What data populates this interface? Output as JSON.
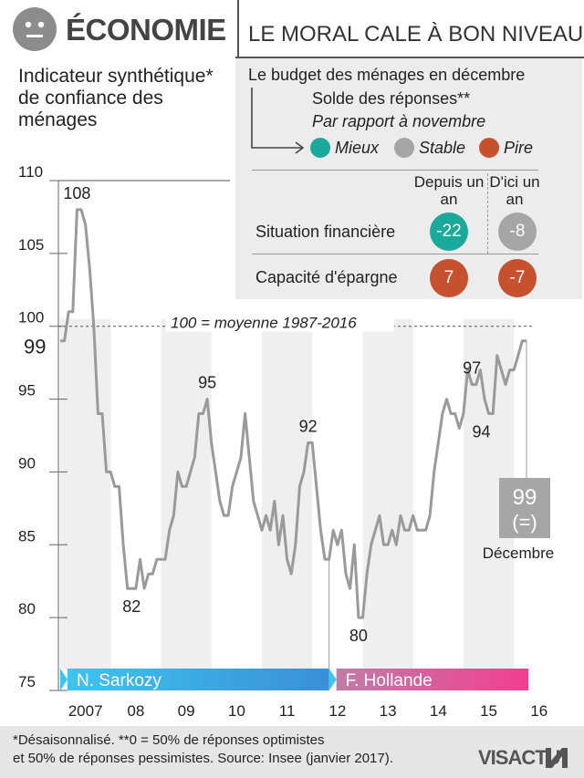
{
  "header": {
    "title": "ÉCONOMIE",
    "subtitle": "LE MORAL CALE À BON NIVEAU",
    "icon": "neutral-face-icon"
  },
  "indicator_title": "Indicateur synthétique* de confiance des ménages",
  "budget_panel": {
    "title": "Le budget des ménages en décembre",
    "subtitle": "Solde des réponses**",
    "subtitle2": "Par rapport à novembre",
    "legend": [
      {
        "label": "Mieux",
        "color": "#1aa99a"
      },
      {
        "label": "Stable",
        "color": "#a6a6a6"
      },
      {
        "label": "Pire",
        "color": "#c5512f"
      }
    ],
    "columns": [
      "Depuis un an",
      "D'ici un an"
    ],
    "rows": [
      {
        "label": "Situation financière",
        "values": [
          "-22",
          "-8"
        ],
        "colors": [
          "#1aa99a",
          "#a6a6a6"
        ]
      },
      {
        "label": "Capacité d'épargne",
        "values": [
          "7",
          "-7"
        ],
        "colors": [
          "#c5512f",
          "#c5512f"
        ]
      }
    ]
  },
  "chart_data": {
    "type": "line",
    "title": "Indicateur synthétique* de confiance des ménages",
    "ylim": [
      75,
      110
    ],
    "y_ticks": [
      "75",
      "80",
      "85",
      "90",
      "95",
      "100",
      "105",
      "110"
    ],
    "x_ticks": [
      "2007",
      "08",
      "09",
      "10",
      "11",
      "12",
      "13",
      "14",
      "15",
      "16"
    ],
    "reference_line": {
      "value": 100,
      "label": "100 = moyenne 1987-2016"
    },
    "series": [
      {
        "values": [
          99,
          99,
          101,
          101,
          108,
          108,
          107,
          104,
          100,
          94,
          94,
          90,
          90,
          89,
          89,
          85,
          82,
          82,
          82,
          84,
          82,
          83,
          83,
          84,
          84,
          84,
          86,
          87,
          90,
          89,
          89,
          90,
          91,
          94,
          94,
          95,
          92,
          90,
          88,
          87,
          87,
          89,
          90,
          91,
          94,
          91,
          88,
          87,
          86,
          87,
          86,
          88,
          85,
          87,
          84,
          83,
          85,
          89,
          90,
          92,
          92,
          89,
          86,
          84,
          84,
          86,
          85,
          86,
          83,
          82,
          85,
          80,
          80,
          83,
          85,
          86,
          87,
          85,
          85,
          86,
          85,
          87,
          86,
          86,
          87,
          86,
          86,
          86,
          87,
          90,
          92,
          94,
          95,
          94,
          94,
          93,
          94,
          97,
          96,
          96,
          97,
          95,
          94,
          94,
          98,
          97,
          96,
          97,
          97,
          98,
          99,
          99
        ]
      }
    ],
    "annotations": [
      {
        "label": "108",
        "value": 108
      },
      {
        "label": "82",
        "value": 82
      },
      {
        "label": "95",
        "value": 95
      },
      {
        "label": "92",
        "value": 92
      },
      {
        "label": "80",
        "value": 80
      },
      {
        "label": "97",
        "value": 97
      },
      {
        "label": "94",
        "value": 94
      }
    ],
    "start_label": "99",
    "end_box": {
      "value": "99",
      "change": "(=)",
      "label": "Décembre"
    },
    "presidencies": [
      {
        "name": "N. Sarkozy",
        "color": "#3ba6dc"
      },
      {
        "name": "F. Hollande",
        "color": "#e9418c"
      }
    ]
  },
  "footer": {
    "note1": "*Désaisonnalisé. **0 = 50% de réponses optimistes",
    "note2": "et 50% de réponses pessimistes. Source: Insee (janvier 2017).",
    "logo": "VISACTU"
  }
}
